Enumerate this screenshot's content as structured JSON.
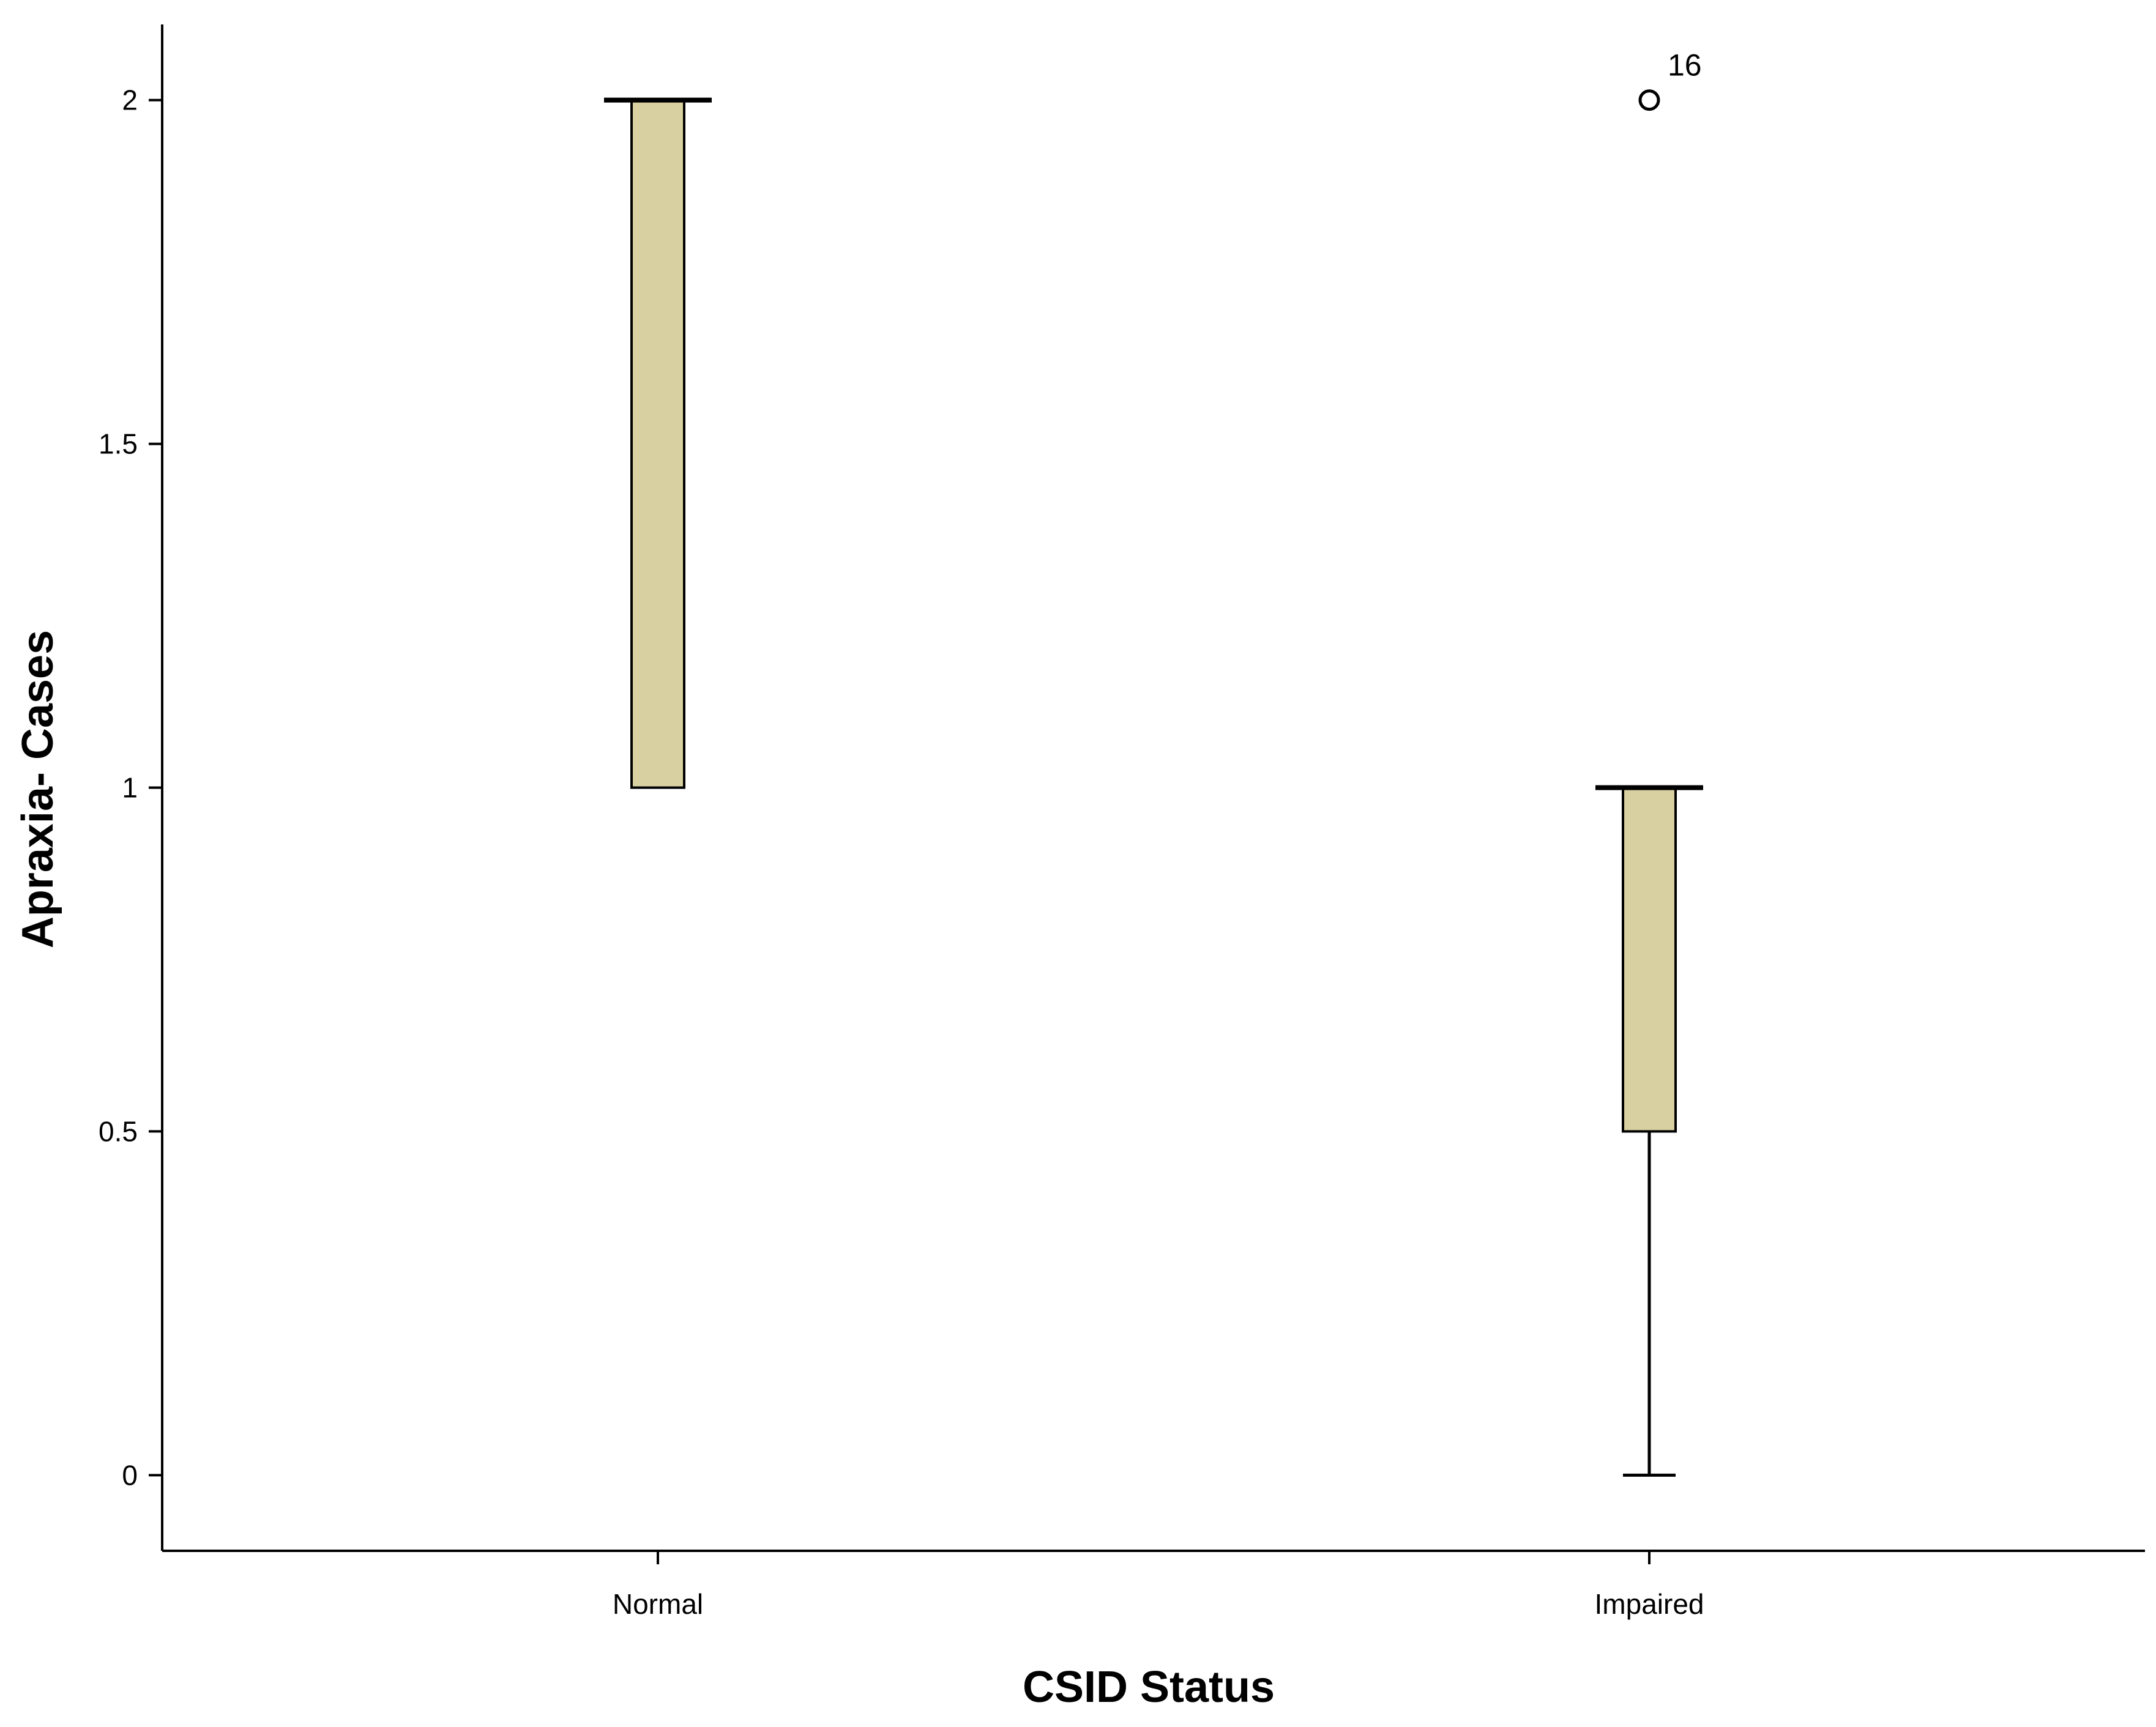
{
  "chart_data": {
    "type": "box",
    "xlabel": "CSID Status",
    "ylabel": "Apraxia- Cases",
    "categories": [
      "Normal",
      "Impaired"
    ],
    "ylim": [
      -0.11,
      2.11
    ],
    "yticks": [
      0,
      0.5,
      1,
      1.5,
      2
    ],
    "ytick_labels": [
      "0",
      "0.5",
      "1",
      "1.5",
      "2"
    ],
    "grid": false,
    "box_color": "#d8d0a0",
    "boxes": [
      {
        "category": "Normal",
        "whisker_low": 1,
        "q1": 1,
        "median": 2,
        "q3": 2,
        "whisker_high": 2,
        "outliers": []
      },
      {
        "category": "Impaired",
        "whisker_low": 0,
        "q1": 0.5,
        "median": 1,
        "q3": 1,
        "whisker_high": 1,
        "outliers": [
          {
            "value": 2,
            "label": "16"
          }
        ]
      }
    ]
  }
}
